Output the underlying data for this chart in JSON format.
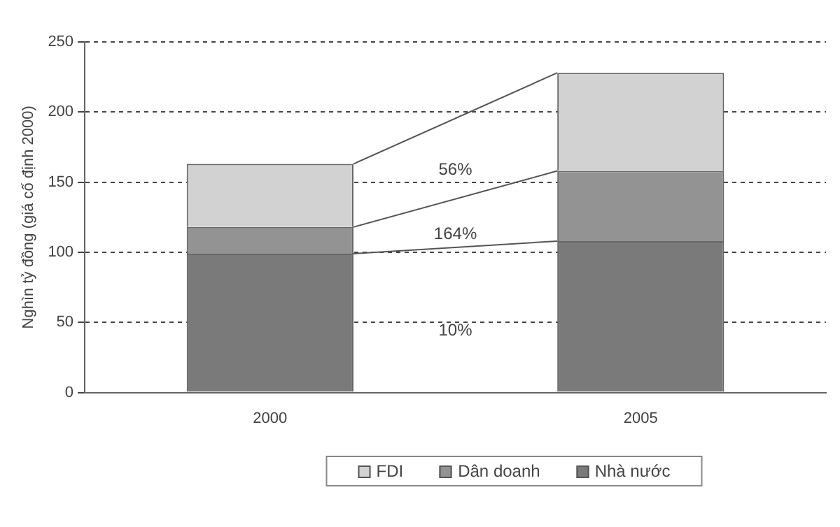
{
  "chart_data": {
    "type": "bar",
    "stacked": true,
    "ylabel": "Nghìn tỷ đồng (giá cố định 2000)",
    "categories": [
      "2000",
      "2005"
    ],
    "series": [
      {
        "name": "Nhà nước",
        "color": "#7a7a7a",
        "values": [
          99,
          108
        ]
      },
      {
        "name": "Dân doanh",
        "color": "#939393",
        "values": [
          19,
          50
        ]
      },
      {
        "name": "FDI",
        "color": "#d2d2d2",
        "values": [
          45,
          70
        ]
      }
    ],
    "ylim": [
      0,
      250
    ],
    "yticks": [
      0,
      50,
      100,
      150,
      200,
      250
    ],
    "grid": "y",
    "legend": "bottom",
    "annotations": [
      "56%",
      "164%",
      "10%"
    ]
  }
}
